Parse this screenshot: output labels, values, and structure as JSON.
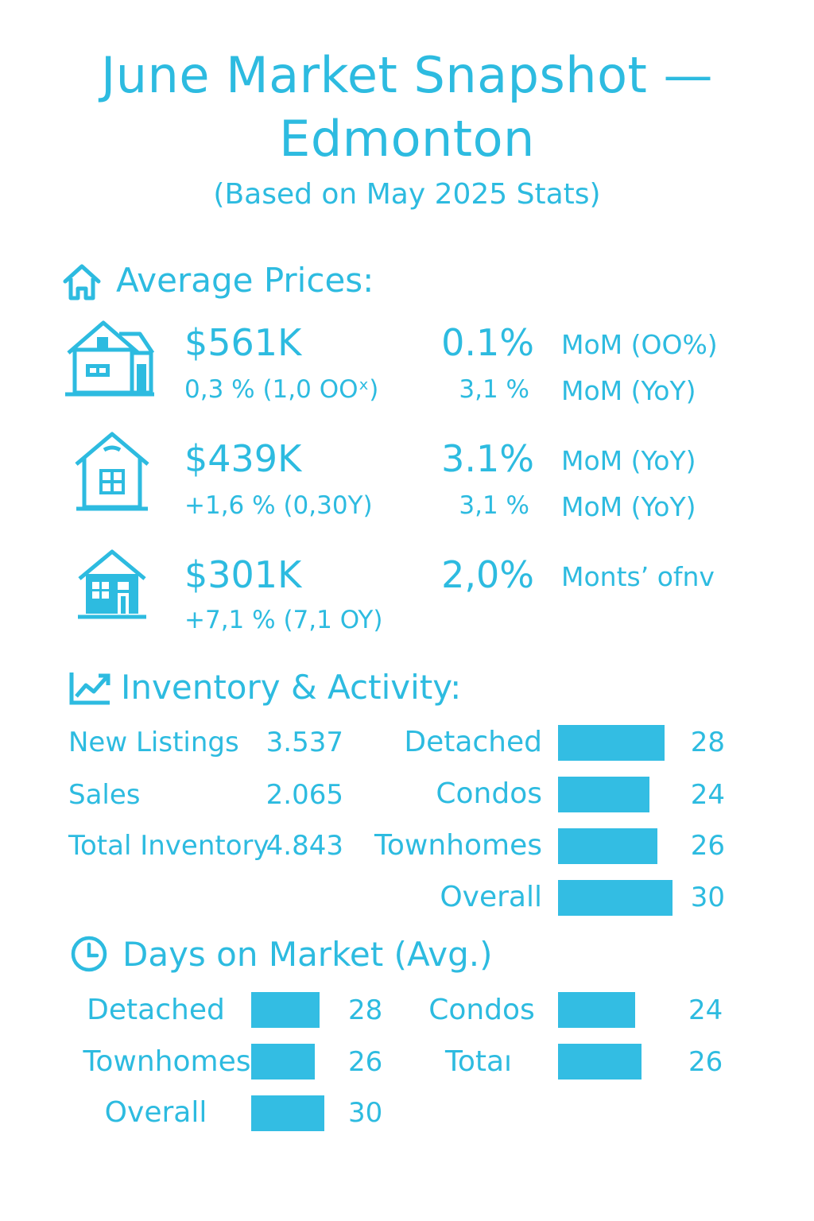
{
  "title_line1": "June Market Snapshot —",
  "title_line2": "Edmonton",
  "subtitle": "(Based on May 2025 Stats)",
  "accent_color": "#2dbbe0",
  "bar_color": "#33bde3",
  "sections": {
    "prices": {
      "heading": "Average Prices:",
      "icon": "house-icon"
    },
    "inventory": {
      "heading": "Inventory & Activity:",
      "icon": "trend-chart-icon"
    },
    "dom": {
      "heading": "Days on Market (Avg.)",
      "icon": "clock-icon"
    }
  },
  "prices": [
    {
      "icon": "detached-house-icon",
      "price": "$561K",
      "sub": "0,3 % (1,0 OOˣ)",
      "pct_main": "0.1%",
      "label_main": "MoM (OO%)",
      "pct_sub": "3,1 %",
      "label_sub": "MoM (YoY)"
    },
    {
      "icon": "townhome-icon",
      "price": "$439K",
      "sub": "+1,6 % (0,30Y)",
      "pct_main": "3.1%",
      "label_main": "MoM (YoY)",
      "pct_sub": "3,1  %",
      "label_sub": "MoM (YoY)"
    },
    {
      "icon": "condo-icon",
      "price": "$301K",
      "sub": "+7,1 % (7,1 OY)",
      "pct_main": "2,0%",
      "label_main": "Monts’ ofnv",
      "pct_sub": "",
      "label_sub": ""
    }
  ],
  "inventory": {
    "stats": [
      {
        "label": "New Listings",
        "value": "3.537"
      },
      {
        "label": "Sales",
        "value": "2.065"
      },
      {
        "label": "Total Inventory",
        "value": "4.843"
      }
    ],
    "bars": [
      {
        "label": "Detached",
        "value": 28,
        "display": "28"
      },
      {
        "label": "Condos",
        "value": 24,
        "display": "24"
      },
      {
        "label": "Townhomes",
        "value": 26,
        "display": "26"
      },
      {
        "label": "Overall",
        "value": 30,
        "display": "30"
      }
    ]
  },
  "dom": {
    "items": [
      {
        "label": "Detached",
        "value": 28,
        "display": "28"
      },
      {
        "label": "Condos",
        "value": 24,
        "display": "24"
      },
      {
        "label": "Townhomes",
        "value": 26,
        "display": "26"
      },
      {
        "label": "Totaı",
        "value": 26,
        "display": "26"
      },
      {
        "label": "Overall",
        "value": 30,
        "display": "30"
      }
    ]
  }
}
